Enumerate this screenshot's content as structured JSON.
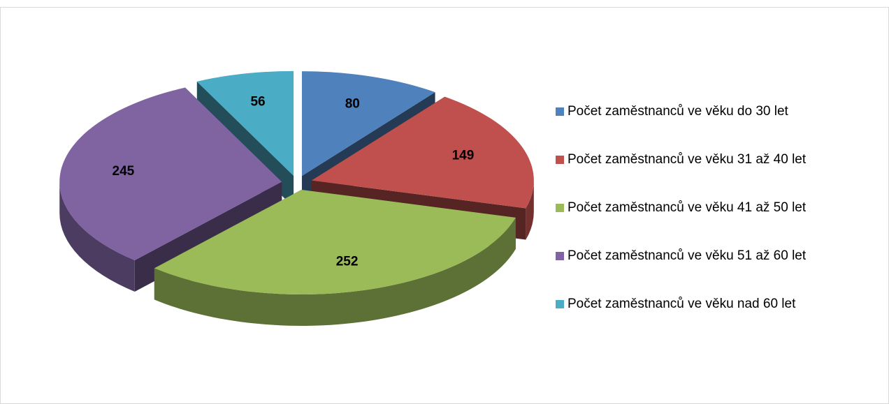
{
  "chart_data": {
    "type": "pie3d",
    "categories": [
      "Počet zaměstnanců ve věku do 30 let",
      "Počet zaměstnanců ve věku 31 až 40 let",
      "Počet zaměstnanců ve věku 41 až 50 let",
      "Počet zaměstnanců ve věku 51 až 60 let",
      "Počet zaměstnanců ve věku nad 60 let"
    ],
    "values": [
      80,
      149,
      252,
      245,
      56
    ],
    "colors": [
      "#4f81bd",
      "#c0504d",
      "#9bbb59",
      "#8064a2",
      "#4bacc6"
    ],
    "legend": "right"
  }
}
